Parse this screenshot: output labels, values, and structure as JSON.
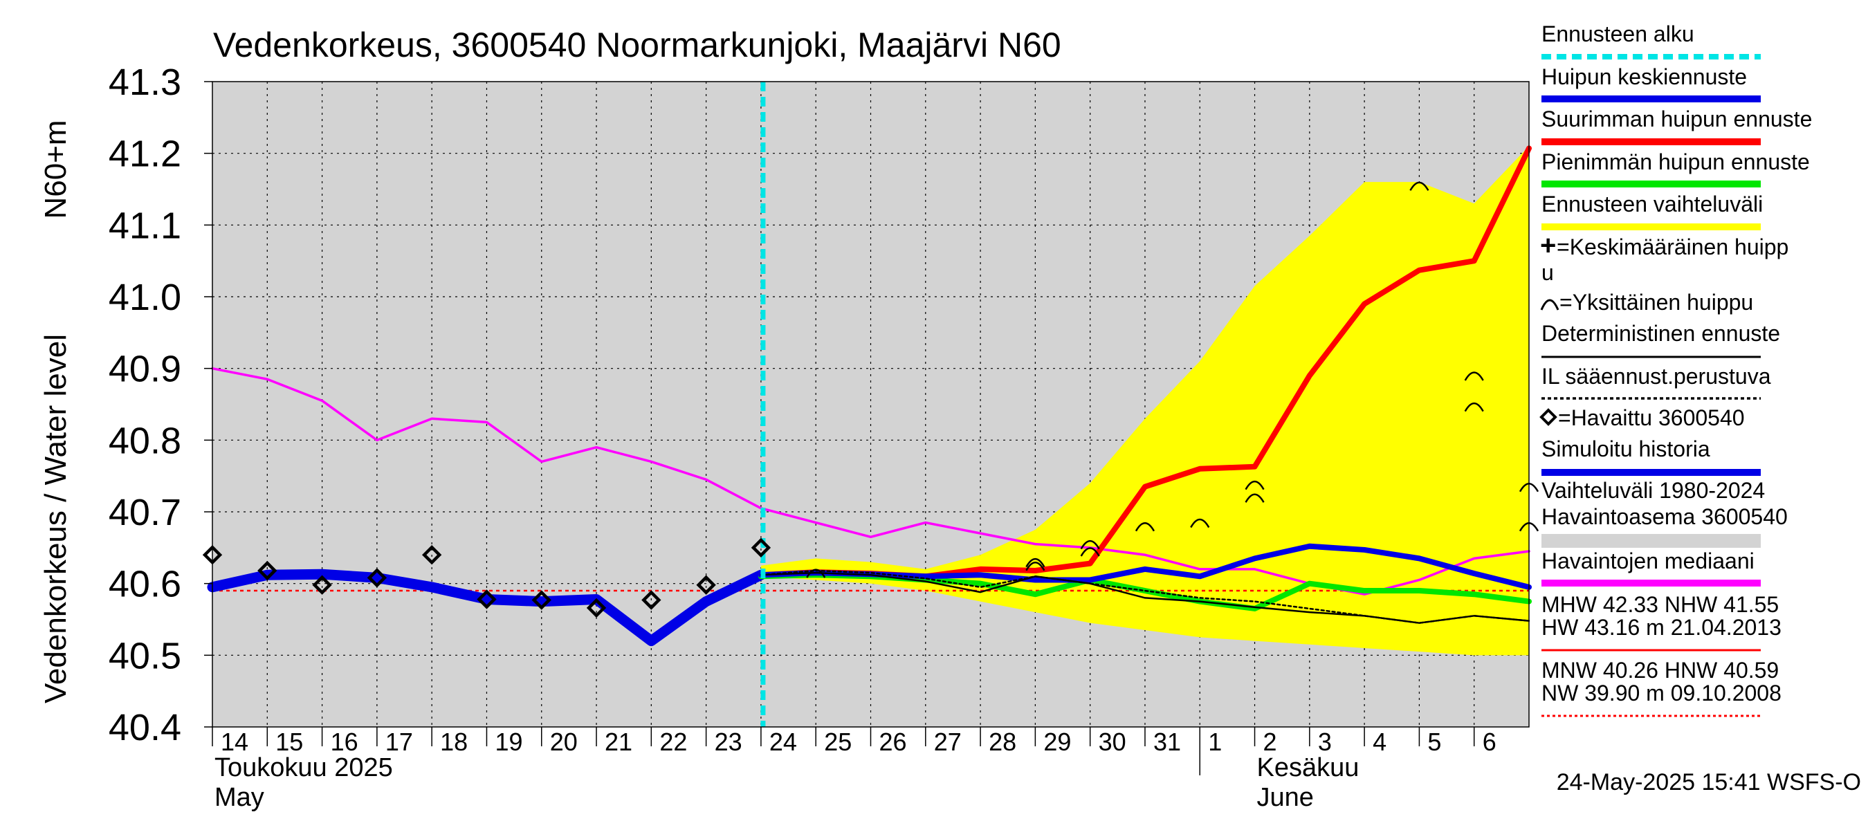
{
  "chart_data": {
    "type": "line",
    "title": "Vedenkorkeus, 3600540 Noormarkunjoki, Maajärvi N60",
    "ylabel_primary": "Vedenkorkeus / Water level",
    "ylabel_secondary": "N60+m",
    "ylim": [
      40.4,
      41.3
    ],
    "yticks": [
      40.4,
      40.5,
      40.6,
      40.7,
      40.8,
      40.9,
      41.0,
      41.1,
      41.2,
      41.3
    ],
    "xlim": [
      0,
      24
    ],
    "x_tick_labels": [
      "14",
      "15",
      "16",
      "17",
      "18",
      "19",
      "20",
      "21",
      "22",
      "23",
      "24",
      "25",
      "26",
      "27",
      "28",
      "29",
      "30",
      "31",
      "1",
      "2",
      "3",
      "4",
      "5",
      "6"
    ],
    "month_labels": [
      {
        "at": 0,
        "line1": "Toukokuu  2025",
        "line2": "May"
      },
      {
        "at": 19,
        "line1": "Kesäkuu",
        "line2": "June"
      }
    ],
    "month_boundary": 18,
    "forecast_start": 10,
    "timestamp": "24-May-2025 15:41 WSFS-O",
    "series": [
      {
        "name": "Ennusteen vaihteluväli (upper)",
        "x": [
          10,
          11,
          12,
          13,
          14,
          15,
          16,
          17,
          18,
          19,
          20,
          21,
          22,
          23,
          24
        ],
        "values": [
          40.625,
          40.635,
          40.63,
          40.62,
          40.64,
          40.675,
          40.74,
          40.83,
          40.91,
          41.015,
          41.085,
          41.16,
          41.16,
          41.13,
          41.21
        ]
      },
      {
        "name": "Ennusteen vaihteluväli (lower)",
        "x": [
          10,
          11,
          12,
          13,
          14,
          15,
          16,
          17,
          18,
          19,
          20,
          21,
          22,
          23,
          24
        ],
        "values": [
          40.61,
          40.605,
          40.6,
          40.59,
          40.575,
          40.56,
          40.545,
          40.535,
          40.525,
          40.52,
          40.515,
          40.51,
          40.505,
          40.5,
          40.5
        ]
      },
      {
        "name": "Havaintojen mediaani",
        "x": [
          0,
          1,
          2,
          3,
          4,
          5,
          6,
          7,
          8,
          9,
          10,
          11,
          12,
          13,
          14,
          15,
          16,
          17,
          18,
          19,
          20,
          21,
          22,
          23,
          24
        ],
        "values": [
          40.9,
          40.885,
          40.855,
          40.8,
          40.83,
          40.825,
          40.77,
          40.79,
          40.77,
          40.745,
          40.705,
          40.685,
          40.665,
          40.685,
          40.67,
          40.655,
          40.65,
          40.64,
          40.62,
          40.62,
          40.6,
          40.585,
          40.605,
          40.635,
          40.645
        ]
      },
      {
        "name": "Simuloitu historia",
        "x": [
          0,
          1,
          2,
          3,
          4,
          5,
          6,
          7,
          8,
          9,
          10
        ],
        "values": [
          40.595,
          40.612,
          40.613,
          40.608,
          40.595,
          40.578,
          40.575,
          40.578,
          40.52,
          40.575,
          40.612
        ]
      },
      {
        "name": "Suurimman huipun ennuste",
        "x": [
          10,
          11,
          12,
          13,
          14,
          15,
          16,
          17,
          18,
          19,
          20,
          21,
          22,
          23,
          24
        ],
        "values": [
          40.612,
          40.616,
          40.614,
          40.61,
          40.62,
          40.618,
          40.628,
          40.735,
          40.76,
          40.763,
          40.89,
          40.99,
          41.037,
          41.05,
          41.207
        ]
      },
      {
        "name": "Pienimmän huipun ennuste",
        "x": [
          10,
          11,
          12,
          13,
          14,
          15,
          16,
          17,
          18,
          19,
          20,
          21,
          22,
          23,
          24
        ],
        "values": [
          40.61,
          40.612,
          40.61,
          40.605,
          40.6,
          40.585,
          40.605,
          40.59,
          40.575,
          40.565,
          40.6,
          40.59,
          40.59,
          40.585,
          40.575
        ]
      },
      {
        "name": "Huipun keskiennuste",
        "x": [
          10,
          11,
          12,
          13,
          14,
          15,
          16,
          17,
          18,
          19,
          20,
          21,
          22,
          23,
          24
        ],
        "values": [
          40.612,
          40.615,
          40.613,
          40.61,
          40.612,
          40.605,
          40.605,
          40.62,
          40.61,
          40.635,
          40.652,
          40.647,
          40.635,
          40.614,
          40.595
        ]
      },
      {
        "name": "Deterministinen ennuste",
        "x": [
          10,
          11,
          12,
          13,
          14,
          15,
          16,
          17,
          18,
          19,
          20,
          21,
          22,
          23,
          24
        ],
        "values": [
          40.612,
          40.615,
          40.612,
          40.603,
          40.588,
          40.61,
          40.6,
          40.58,
          40.575,
          40.567,
          40.56,
          40.555,
          40.545,
          40.555,
          40.548
        ]
      },
      {
        "name": "IL sääennust.perustuva",
        "x": [
          10,
          11,
          12,
          13,
          14,
          15,
          16,
          17,
          18,
          19,
          20,
          21,
          22,
          23,
          24
        ],
        "values": [
          40.612,
          40.618,
          40.615,
          40.607,
          40.595,
          40.61,
          40.6,
          40.59,
          40.58,
          40.575,
          40.565,
          40.555,
          40.545,
          40.555,
          40.548
        ]
      },
      {
        "name": "Havaittu 3600540",
        "x": [
          0,
          1,
          2,
          3,
          4,
          5,
          6,
          7,
          8,
          9,
          10
        ],
        "values": [
          40.64,
          40.618,
          40.598,
          40.608,
          40.64,
          40.578,
          40.577,
          40.566,
          40.577,
          40.598,
          40.65
        ]
      },
      {
        "name": "Yksittäinen huippu",
        "x": [
          11,
          15,
          15,
          16,
          16,
          17,
          18,
          19,
          19,
          22,
          23,
          23,
          24,
          24
        ],
        "values": [
          40.615,
          40.625,
          40.63,
          40.645,
          40.655,
          40.68,
          40.685,
          40.72,
          40.738,
          41.155,
          40.847,
          40.89,
          40.68,
          40.735
        ]
      },
      {
        "name": "NHW reference",
        "x": [
          0,
          24
        ],
        "values": [
          40.59,
          40.59
        ]
      }
    ],
    "legend": [
      {
        "label": "Ennusteen alku",
        "color": "#00e5e5",
        "style": "dash"
      },
      {
        "label": "Huipun keskiennuste",
        "color": "#0000e6",
        "style": "line"
      },
      {
        "label": "Suurimman huipun ennuste",
        "color": "#ff0000",
        "style": "line"
      },
      {
        "label": "Pienimmän huipun ennuste",
        "color": "#00e600",
        "style": "line"
      },
      {
        "label": "Ennusteen vaihteluväli",
        "color": "#ffff00",
        "style": "band"
      },
      {
        "label": "=Keskimääräinen huipp",
        "color": "#000000",
        "style": "none",
        "symbol": "plus"
      },
      {
        "label": "u",
        "color": "#000000",
        "style": "none"
      },
      {
        "label": "=Yksittäinen huippu",
        "color": "#000000",
        "style": "none",
        "symbol": "arc"
      },
      {
        "label": "Deterministinen ennuste",
        "color": "#000000",
        "style": "thin"
      },
      {
        "label": "IL sääennust.perustuva",
        "color": "#000000",
        "style": "dotted"
      },
      {
        "label": "=Havaittu 3600540",
        "color": "#000000",
        "style": "none",
        "symbol": "diamond"
      },
      {
        "label": "Simuloitu historia",
        "color": "#0000e6",
        "style": "thick"
      },
      {
        "label": "Vaihteluväli 1980-2024",
        "color": "#d3d3d3",
        "style": "none"
      },
      {
        "label": " Havaintoasema 3600540",
        "color": "#d3d3d3",
        "style": "band"
      },
      {
        "label": "Havaintojen mediaani",
        "color": "#ff00ff",
        "style": "line"
      },
      {
        "label": "MHW  42.33 NHW  41.55",
        "color": "#000000",
        "style": "none"
      },
      {
        "label": "HW  43.16 m 21.04.2013",
        "color": "#ff0000",
        "style": "thinline"
      },
      {
        "label": "MNW  40.26 HNW  40.59",
        "color": "#000000",
        "style": "none"
      },
      {
        "label": "NW  39.90 m 09.10.2008",
        "color": "#ff0000",
        "style": "reddot"
      }
    ]
  }
}
